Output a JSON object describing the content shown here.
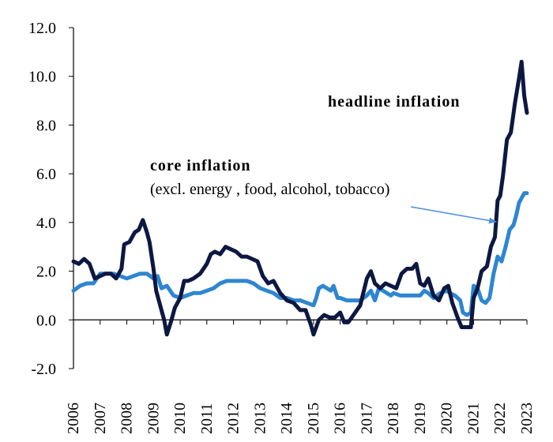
{
  "chart_data": {
    "type": "line",
    "title": "",
    "xlabel": "",
    "ylabel": "",
    "ylim": [
      -2,
      12
    ],
    "yticks": [
      "-2.0",
      "0.0",
      "2.0",
      "4.0",
      "6.0",
      "8.0",
      "10.0",
      "12.0"
    ],
    "xticks": [
      "2006",
      "2007",
      "2008",
      "2009",
      "2010",
      "2011",
      "2012",
      "2013",
      "2014",
      "2015",
      "2016",
      "2017",
      "2018",
      "2019",
      "2020",
      "2021",
      "2022",
      "2023"
    ],
    "grid": false,
    "annotations": {
      "headline": "headline inflation",
      "core_title": "core inflation",
      "core_sub": "(excl.  energy , food, alcohol, tobacco)"
    },
    "series": [
      {
        "name": "headline inflation",
        "color": "#0d1842",
        "points": [
          [
            2006.0,
            2.4
          ],
          [
            2006.2,
            2.3
          ],
          [
            2006.4,
            2.5
          ],
          [
            2006.6,
            2.3
          ],
          [
            2006.8,
            1.7
          ],
          [
            2007.0,
            1.8
          ],
          [
            2007.2,
            1.9
          ],
          [
            2007.4,
            1.9
          ],
          [
            2007.6,
            1.7
          ],
          [
            2007.8,
            2.1
          ],
          [
            2007.9,
            3.1
          ],
          [
            2008.1,
            3.2
          ],
          [
            2008.3,
            3.6
          ],
          [
            2008.45,
            3.7
          ],
          [
            2008.6,
            4.1
          ],
          [
            2008.75,
            3.6
          ],
          [
            2008.85,
            3.2
          ],
          [
            2009.0,
            2.1
          ],
          [
            2009.1,
            1.2
          ],
          [
            2009.25,
            0.6
          ],
          [
            2009.4,
            0.0
          ],
          [
            2009.5,
            -0.6
          ],
          [
            2009.65,
            -0.1
          ],
          [
            2009.8,
            0.5
          ],
          [
            2010.0,
            0.9
          ],
          [
            2010.15,
            1.6
          ],
          [
            2010.3,
            1.6
          ],
          [
            2010.5,
            1.7
          ],
          [
            2010.75,
            1.9
          ],
          [
            2011.0,
            2.3
          ],
          [
            2011.15,
            2.7
          ],
          [
            2011.3,
            2.8
          ],
          [
            2011.5,
            2.7
          ],
          [
            2011.7,
            3.0
          ],
          [
            2011.9,
            2.9
          ],
          [
            2012.1,
            2.8
          ],
          [
            2012.3,
            2.6
          ],
          [
            2012.5,
            2.6
          ],
          [
            2012.7,
            2.5
          ],
          [
            2012.9,
            2.4
          ],
          [
            2013.1,
            1.8
          ],
          [
            2013.3,
            1.5
          ],
          [
            2013.5,
            1.6
          ],
          [
            2013.75,
            1.1
          ],
          [
            2014.0,
            0.8
          ],
          [
            2014.25,
            0.7
          ],
          [
            2014.5,
            0.4
          ],
          [
            2014.7,
            0.4
          ],
          [
            2014.9,
            -0.2
          ],
          [
            2015.0,
            -0.6
          ],
          [
            2015.2,
            0.0
          ],
          [
            2015.4,
            0.2
          ],
          [
            2015.6,
            0.1
          ],
          [
            2015.8,
            0.1
          ],
          [
            2016.0,
            0.3
          ],
          [
            2016.15,
            -0.1
          ],
          [
            2016.3,
            -0.1
          ],
          [
            2016.5,
            0.2
          ],
          [
            2016.75,
            0.6
          ],
          [
            2017.0,
            1.7
          ],
          [
            2017.15,
            2.0
          ],
          [
            2017.3,
            1.5
          ],
          [
            2017.5,
            1.3
          ],
          [
            2017.7,
            1.5
          ],
          [
            2017.9,
            1.4
          ],
          [
            2018.1,
            1.3
          ],
          [
            2018.3,
            1.9
          ],
          [
            2018.5,
            2.1
          ],
          [
            2018.7,
            2.1
          ],
          [
            2018.85,
            2.3
          ],
          [
            2019.0,
            1.5
          ],
          [
            2019.15,
            1.4
          ],
          [
            2019.3,
            1.7
          ],
          [
            2019.5,
            1.0
          ],
          [
            2019.7,
            0.8
          ],
          [
            2019.9,
            1.3
          ],
          [
            2020.05,
            1.4
          ],
          [
            2020.2,
            0.7
          ],
          [
            2020.4,
            0.1
          ],
          [
            2020.55,
            -0.3
          ],
          [
            2020.7,
            -0.3
          ],
          [
            2020.9,
            -0.3
          ],
          [
            2021.0,
            0.9
          ],
          [
            2021.15,
            1.3
          ],
          [
            2021.3,
            2.0
          ],
          [
            2021.5,
            2.2
          ],
          [
            2021.65,
            3.0
          ],
          [
            2021.8,
            3.4
          ],
          [
            2021.9,
            4.9
          ],
          [
            2022.0,
            5.1
          ],
          [
            2022.1,
            5.9
          ],
          [
            2022.25,
            7.4
          ],
          [
            2022.4,
            7.7
          ],
          [
            2022.55,
            8.9
          ],
          [
            2022.7,
            9.9
          ],
          [
            2022.8,
            10.6
          ],
          [
            2022.9,
            9.2
          ],
          [
            2023.0,
            8.5
          ]
        ]
      },
      {
        "name": "core inflation (excl. energy, food, alcohol, tobacco)",
        "color": "#2e86d0",
        "points": [
          [
            2006.0,
            1.2
          ],
          [
            2006.25,
            1.4
          ],
          [
            2006.5,
            1.5
          ],
          [
            2006.75,
            1.5
          ],
          [
            2007.0,
            1.9
          ],
          [
            2007.25,
            1.9
          ],
          [
            2007.5,
            1.9
          ],
          [
            2007.75,
            1.8
          ],
          [
            2008.0,
            1.7
          ],
          [
            2008.25,
            1.8
          ],
          [
            2008.5,
            1.9
          ],
          [
            2008.75,
            1.9
          ],
          [
            2009.0,
            1.7
          ],
          [
            2009.15,
            1.8
          ],
          [
            2009.3,
            1.3
          ],
          [
            2009.5,
            1.4
          ],
          [
            2009.75,
            1.0
          ],
          [
            2010.0,
            0.9
          ],
          [
            2010.25,
            1.0
          ],
          [
            2010.5,
            1.1
          ],
          [
            2010.75,
            1.1
          ],
          [
            2011.0,
            1.2
          ],
          [
            2011.25,
            1.3
          ],
          [
            2011.5,
            1.5
          ],
          [
            2011.75,
            1.6
          ],
          [
            2012.0,
            1.6
          ],
          [
            2012.25,
            1.6
          ],
          [
            2012.5,
            1.6
          ],
          [
            2012.75,
            1.5
          ],
          [
            2013.0,
            1.3
          ],
          [
            2013.25,
            1.2
          ],
          [
            2013.5,
            1.1
          ],
          [
            2013.75,
            0.9
          ],
          [
            2014.0,
            0.9
          ],
          [
            2014.25,
            0.8
          ],
          [
            2014.5,
            0.8
          ],
          [
            2014.75,
            0.7
          ],
          [
            2015.0,
            0.6
          ],
          [
            2015.1,
            0.9
          ],
          [
            2015.2,
            1.3
          ],
          [
            2015.35,
            1.4
          ],
          [
            2015.5,
            1.3
          ],
          [
            2015.65,
            1.2
          ],
          [
            2015.75,
            1.4
          ],
          [
            2015.9,
            0.9
          ],
          [
            2016.0,
            0.9
          ],
          [
            2016.25,
            0.8
          ],
          [
            2016.5,
            0.8
          ],
          [
            2016.75,
            0.8
          ],
          [
            2017.0,
            1.0
          ],
          [
            2017.15,
            1.2
          ],
          [
            2017.3,
            0.8
          ],
          [
            2017.45,
            1.3
          ],
          [
            2017.6,
            1.2
          ],
          [
            2017.75,
            1.1
          ],
          [
            2017.9,
            1.0
          ],
          [
            2018.0,
            1.1
          ],
          [
            2018.25,
            1.0
          ],
          [
            2018.5,
            1.0
          ],
          [
            2018.75,
            1.0
          ],
          [
            2019.0,
            1.0
          ],
          [
            2019.15,
            1.2
          ],
          [
            2019.3,
            1.1
          ],
          [
            2019.5,
            0.9
          ],
          [
            2019.75,
            1.1
          ],
          [
            2020.0,
            1.2
          ],
          [
            2020.1,
            1.1
          ],
          [
            2020.3,
            1.0
          ],
          [
            2020.5,
            0.8
          ],
          [
            2020.6,
            0.3
          ],
          [
            2020.75,
            0.2
          ],
          [
            2020.9,
            0.3
          ],
          [
            2021.0,
            1.4
          ],
          [
            2021.15,
            1.3
          ],
          [
            2021.3,
            0.8
          ],
          [
            2021.45,
            0.7
          ],
          [
            2021.6,
            0.9
          ],
          [
            2021.75,
            1.9
          ],
          [
            2021.9,
            2.6
          ],
          [
            2022.05,
            2.4
          ],
          [
            2022.2,
            3.0
          ],
          [
            2022.35,
            3.7
          ],
          [
            2022.5,
            3.9
          ],
          [
            2022.6,
            4.3
          ],
          [
            2022.7,
            4.8
          ],
          [
            2022.8,
            5.0
          ],
          [
            2022.9,
            5.2
          ],
          [
            2023.0,
            5.2
          ]
        ]
      }
    ]
  }
}
